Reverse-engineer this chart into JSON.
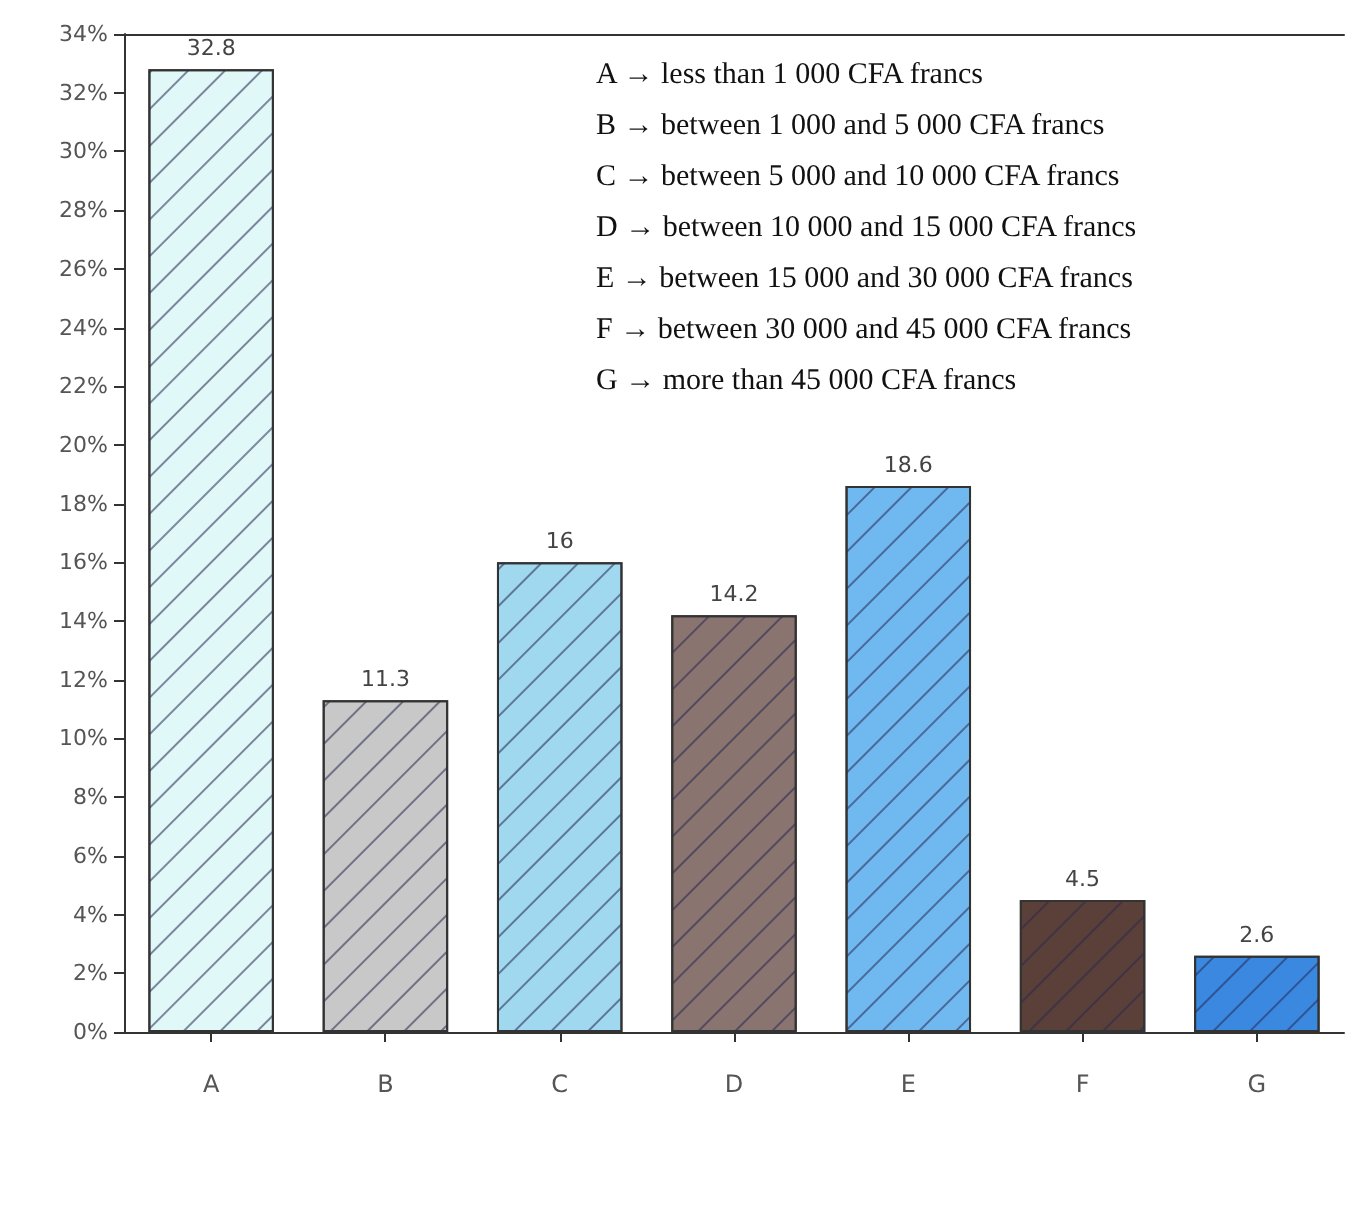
{
  "chart_data": {
    "type": "bar",
    "categories": [
      "A",
      "B",
      "C",
      "D",
      "E",
      "F",
      "G"
    ],
    "values": [
      32.8,
      11.3,
      16,
      14.2,
      18.6,
      4.5,
      2.6
    ],
    "colors": [
      "#e0f8f8",
      "#c8c8c8",
      "#a0d8f0",
      "#8a7470",
      "#70b8f0",
      "#5a4038",
      "#3a88e0"
    ],
    "data_labels": true,
    "ylim": [
      0,
      34
    ],
    "yticks": [
      {
        "value": 0,
        "label": "0%"
      },
      {
        "value": 2,
        "label": "2%"
      },
      {
        "value": 4,
        "label": "4%"
      },
      {
        "value": 6,
        "label": "6%"
      },
      {
        "value": 8,
        "label": "8%"
      },
      {
        "value": 10,
        "label": "10%"
      },
      {
        "value": 12,
        "label": "12%"
      },
      {
        "value": 14,
        "label": "14%"
      },
      {
        "value": 16,
        "label": "16%"
      },
      {
        "value": 18,
        "label": "18%"
      },
      {
        "value": 20,
        "label": "20%"
      },
      {
        "value": 22,
        "label": "22%"
      },
      {
        "value": 24,
        "label": "24%"
      },
      {
        "value": 26,
        "label": "26%"
      },
      {
        "value": 28,
        "label": "28%"
      },
      {
        "value": 30,
        "label": "30%"
      },
      {
        "value": 32,
        "label": "32%"
      },
      {
        "value": 34,
        "label": "34%"
      }
    ],
    "grid": false,
    "annotations": [
      "A → less than 1 000 CFA francs",
      "B → between 1 000 and 5 000 CFA francs",
      "C → between 5 000 and 10 000 CFA francs",
      "D → between 10 000 and 15 000 CFA francs",
      "E → between 15 000 and 30 000 CFA francs",
      "F → between 30 000 and 45 000 CFA francs",
      "G → more than 45 000 CFA francs"
    ]
  }
}
